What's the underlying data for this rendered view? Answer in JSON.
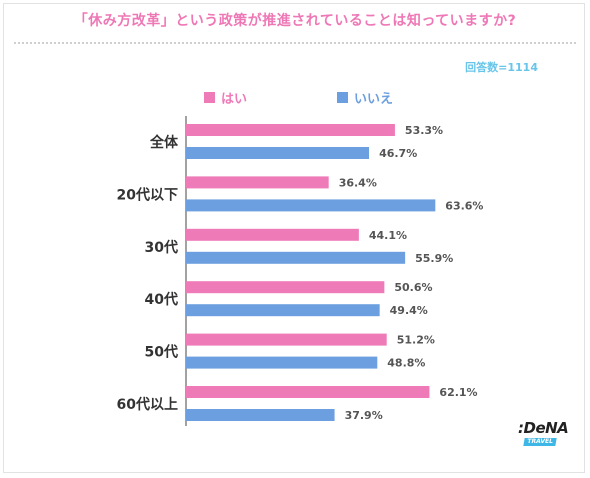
{
  "header": {
    "title": "「休み方改革」という政策が推進されていることは知っていますか?",
    "respondents": "回答数=1114"
  },
  "colors": {
    "yes": "#ef7ab8",
    "no": "#6c9fe0",
    "title": "#ee78b6",
    "count": "#68c5ea"
  },
  "logo": {
    "brand": ":DeNA",
    "sub": "TRAVEL"
  },
  "chart_data": {
    "type": "bar",
    "orientation": "horizontal",
    "categories": [
      "全体",
      "20代以下",
      "30代",
      "40代",
      "50代",
      "60代以上"
    ],
    "series": [
      {
        "name": "はい",
        "values": [
          53.3,
          36.4,
          44.1,
          50.6,
          51.2,
          62.1
        ],
        "labels": [
          "53.3%",
          "36.4%",
          "44.1%",
          "50.6%",
          "51.2%",
          "62.1%"
        ]
      },
      {
        "name": "いいえ",
        "values": [
          46.7,
          63.6,
          55.9,
          49.4,
          48.8,
          37.9
        ],
        "labels": [
          "46.7%",
          "63.6%",
          "55.9%",
          "49.4%",
          "48.8%",
          "37.9%"
        ]
      }
    ],
    "xlim": [
      0,
      100
    ],
    "legend_position": "top-left",
    "grid": false
  }
}
